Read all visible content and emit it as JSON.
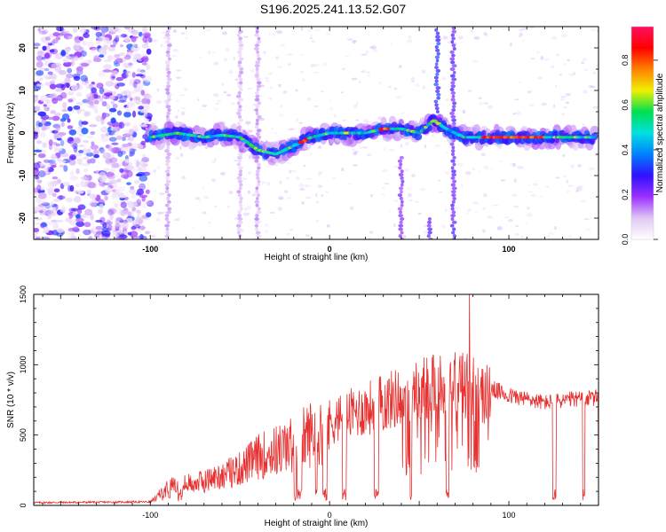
{
  "title": "S196.2025.241.13.52.G07",
  "chart_data": [
    {
      "type": "heatmap",
      "xlabel": "Height of straight line (km)",
      "ylabel": "Frequency (Hz)",
      "xlim": [
        -165,
        150
      ],
      "ylim": [
        -25,
        25
      ],
      "xticks": [
        -100,
        0,
        100
      ],
      "yticks": [
        -20,
        -10,
        0,
        10,
        20
      ],
      "colorbar": {
        "label": "Normalized spectral amplitude",
        "range": [
          0.0,
          0.95
        ],
        "ticks": [
          "0.0",
          "0.2",
          "0.4",
          "0.6",
          "0.8"
        ],
        "tick_values": [
          0.0,
          0.2,
          0.4,
          0.6,
          0.8
        ],
        "colors": [
          "#ffffff",
          "#e0c8f4",
          "#9b30ff",
          "#3010ff",
          "#0080ff",
          "#00e0e0",
          "#00e050",
          "#f0f000",
          "#ff8000",
          "#ff0000",
          "#ff1060"
        ]
      },
      "ridge": [
        {
          "x": -100,
          "y": -1
        },
        {
          "x": -85,
          "y": 0
        },
        {
          "x": -70,
          "y": -1
        },
        {
          "x": -60,
          "y": -0.5
        },
        {
          "x": -50,
          "y": -1
        },
        {
          "x": -40,
          "y": -4
        },
        {
          "x": -30,
          "y": -5
        },
        {
          "x": -20,
          "y": -3
        },
        {
          "x": -10,
          "y": -1
        },
        {
          "x": 0,
          "y": 0
        },
        {
          "x": 10,
          "y": 0
        },
        {
          "x": 20,
          "y": 0
        },
        {
          "x": 30,
          "y": 1
        },
        {
          "x": 40,
          "y": 1
        },
        {
          "x": 50,
          "y": 0
        },
        {
          "x": 58,
          "y": 3
        },
        {
          "x": 65,
          "y": 1
        },
        {
          "x": 75,
          "y": -1
        },
        {
          "x": 90,
          "y": -1
        },
        {
          "x": 110,
          "y": -1
        },
        {
          "x": 130,
          "y": -1
        },
        {
          "x": 148,
          "y": -1
        }
      ]
    },
    {
      "type": "line",
      "xlabel": "Height of straight line (km)",
      "ylabel": "SNR (10 * v/v)",
      "xlim": [
        -165,
        150
      ],
      "ylim": [
        0,
        1500
      ],
      "xticks": [
        -100,
        0,
        100
      ],
      "yticks": [
        0,
        500,
        1000,
        1500
      ],
      "series_color": "#e83030",
      "envelope": [
        {
          "x": -165,
          "y": 20
        },
        {
          "x": -100,
          "y": 25
        },
        {
          "x": -90,
          "y": 150
        },
        {
          "x": -70,
          "y": 200
        },
        {
          "x": -50,
          "y": 300
        },
        {
          "x": -40,
          "y": 400
        },
        {
          "x": -20,
          "y": 500
        },
        {
          "x": -10,
          "y": 600
        },
        {
          "x": 10,
          "y": 700
        },
        {
          "x": 30,
          "y": 800
        },
        {
          "x": 50,
          "y": 900
        },
        {
          "x": 60,
          "y": 950
        },
        {
          "x": 75,
          "y": 950
        },
        {
          "x": 85,
          "y": 880
        },
        {
          "x": 100,
          "y": 800
        },
        {
          "x": 120,
          "y": 750
        },
        {
          "x": 140,
          "y": 780
        },
        {
          "x": 150,
          "y": 780
        }
      ],
      "peak": {
        "x": 78,
        "y": 1500
      }
    }
  ]
}
